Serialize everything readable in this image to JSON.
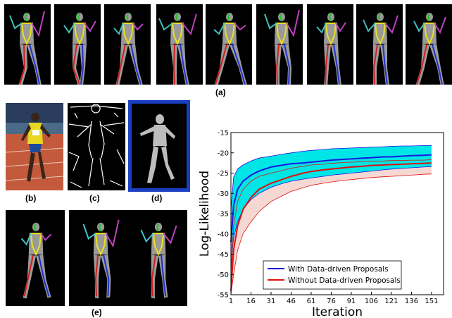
{
  "captions": {
    "a": "(a)",
    "b": "(b)",
    "c": "(c)",
    "d": "(d)",
    "e": "(e)"
  },
  "colors": {
    "with_line": "#1818e0",
    "with_band": "#00e5e5",
    "without_line": "#e01010",
    "without_band": "#f6d8d2",
    "skeleton_torso": "#e8e020",
    "skeleton_left": "#2030d0",
    "skeleton_right": "#d02020",
    "skeleton_arm": "#40c0c0",
    "skeleton_head": "#20c020",
    "highlight_frame": "#1a3fc0"
  },
  "panel_icons": {
    "a": "pose-estimation-sequence",
    "b": "input-photo-sprinter",
    "c": "edge-map",
    "d": "depth-silhouette",
    "e": "pose-results"
  },
  "chart_data": {
    "type": "line",
    "xlabel": "Iteration",
    "ylabel": "Log-Likelihood",
    "xlim": [
      1,
      160
    ],
    "ylim": [
      -55,
      -15
    ],
    "xticks": [
      "1",
      "16",
      "31",
      "46",
      "61",
      "76",
      "91",
      "106",
      "121",
      "136",
      "151"
    ],
    "yticks": [
      "-15",
      "-20",
      "-25",
      "-30",
      "-35",
      "-40",
      "-45",
      "-50",
      "-55"
    ],
    "legend_position": "bottom-center",
    "series": [
      {
        "name": "With Data-driven Proposals",
        "x": [
          1,
          3,
          6,
          10,
          16,
          22,
          31,
          40,
          46,
          55,
          61,
          70,
          76,
          85,
          91,
          100,
          106,
          115,
          121,
          130,
          136,
          145,
          151
        ],
        "mean": [
          -42,
          -33,
          -29,
          -27,
          -25.5,
          -24.5,
          -23.5,
          -23,
          -22.7,
          -22.5,
          -22.3,
          -22,
          -21.8,
          -21.6,
          -21.5,
          -21.3,
          -21.2,
          -21,
          -21,
          -20.8,
          -20.7,
          -20.6,
          -20.5
        ],
        "upper": [
          -34,
          -26,
          -24,
          -23,
          -22,
          -21.3,
          -20.8,
          -20.3,
          -20,
          -19.6,
          -19.4,
          -19.2,
          -19,
          -18.9,
          -18.8,
          -18.7,
          -18.6,
          -18.5,
          -18.4,
          -18.3,
          -18.3,
          -18.2,
          -18.2
        ],
        "lower": [
          -48,
          -41,
          -37,
          -34,
          -31.5,
          -30,
          -28.5,
          -27.5,
          -27,
          -26.5,
          -26.2,
          -25.8,
          -25.5,
          -25.2,
          -25,
          -24.7,
          -24.5,
          -24.2,
          -24,
          -23.8,
          -23.7,
          -23.5,
          -23.4
        ]
      },
      {
        "name": "Without Data-driven Proposals",
        "x": [
          1,
          3,
          6,
          10,
          16,
          22,
          31,
          40,
          46,
          55,
          61,
          70,
          76,
          85,
          91,
          100,
          106,
          115,
          121,
          130,
          136,
          145,
          151
        ],
        "mean": [
          -54,
          -44,
          -38,
          -34,
          -31,
          -29,
          -27.5,
          -26.5,
          -25.8,
          -25,
          -24.6,
          -24.2,
          -24,
          -23.7,
          -23.5,
          -23.3,
          -23.1,
          -23,
          -22.9,
          -22.8,
          -22.7,
          -22.6,
          -22.5
        ],
        "upper": [
          -50,
          -38,
          -32,
          -29,
          -27,
          -25.8,
          -25,
          -24.3,
          -23.8,
          -23.3,
          -23,
          -22.8,
          -22.6,
          -22.4,
          -22.3,
          -22.2,
          -22.1,
          -22,
          -21.9,
          -21.9,
          -21.8,
          -21.8,
          -21.7
        ],
        "lower": [
          -55,
          -50,
          -44,
          -40,
          -37,
          -34.5,
          -32,
          -30.5,
          -29.5,
          -28.6,
          -28,
          -27.5,
          -27.2,
          -26.8,
          -26.6,
          -26.3,
          -26.1,
          -25.9,
          -25.8,
          -25.6,
          -25.5,
          -25.3,
          -25.2
        ]
      }
    ]
  }
}
